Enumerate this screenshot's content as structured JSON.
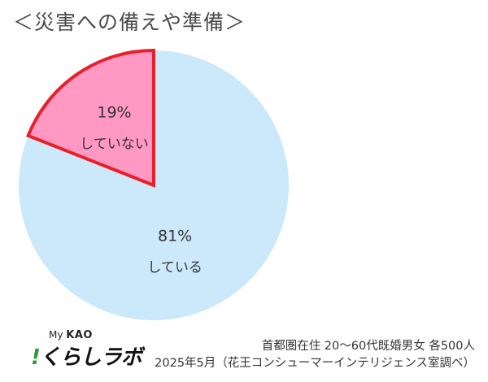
{
  "title": "＜災害への備えや準備＞",
  "chart_data": {
    "type": "pie",
    "slices": [
      {
        "label": "していない",
        "value": 19,
        "value_label": "19%",
        "color": "#ff99c4",
        "stroke": "#e8202a"
      },
      {
        "label": "している",
        "value": 81,
        "value_label": "81%",
        "color": "#cce8fb",
        "stroke": "none"
      }
    ]
  },
  "logo": {
    "my": "My",
    "kao": "KAO",
    "main": "くらしラボ",
    "bang": "!"
  },
  "note": {
    "line1": "首都圏在住 20～60代既婚男女 各500人",
    "line2": "2025年5月（花王コンシューマーインテリジェンス室調べ）"
  }
}
